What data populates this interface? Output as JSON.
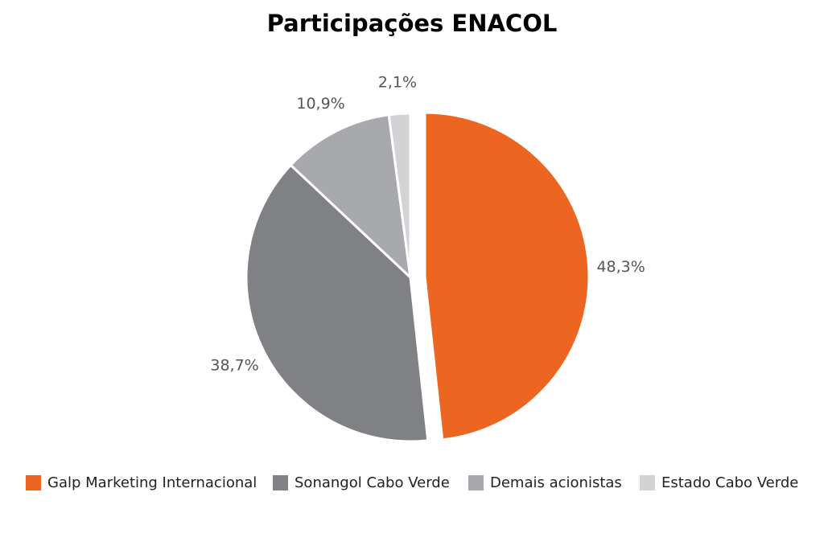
{
  "chart_data": {
    "type": "pie",
    "title": "Participações ENACOL",
    "categories": [
      "Galp Marketing Internacional",
      "Sonangol Cabo Verde",
      "Demais acionistas",
      "Estado Cabo Verde"
    ],
    "values": [
      48.3,
      38.7,
      10.9,
      2.1
    ],
    "value_labels": [
      "48,3%",
      "38,7%",
      "10,9%",
      "2,1%"
    ],
    "colors": [
      "#ec6521",
      "#808184",
      "#a8a9ad",
      "#d2d3d5"
    ],
    "exploded": [
      true,
      false,
      false,
      false
    ],
    "legend_position": "bottom"
  }
}
